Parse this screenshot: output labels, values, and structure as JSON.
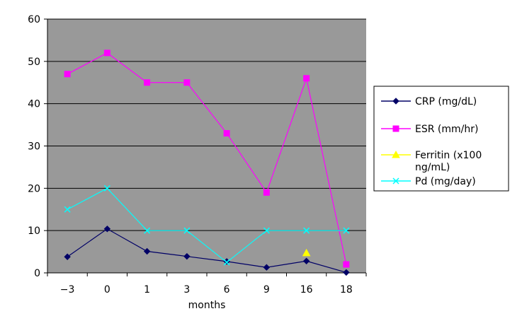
{
  "chart_data": {
    "type": "line",
    "title": "",
    "xlabel": "months",
    "ylabel": "",
    "categories": [
      "−3",
      "0",
      "1",
      "3",
      "6",
      "9",
      "16",
      "18"
    ],
    "ylim": [
      0,
      60
    ],
    "yticks": [
      0,
      10,
      20,
      30,
      40,
      50,
      60
    ],
    "grid": "horizontal",
    "plot_background": "#999999",
    "legend_position": "right",
    "series": [
      {
        "name": "CRP (mg/dL)",
        "color": "#000066",
        "marker": "diamond",
        "values": [
          3.8,
          10.4,
          5.1,
          3.9,
          2.7,
          1.3,
          2.8,
          0.1
        ]
      },
      {
        "name": "ESR (mm/hr)",
        "color": "#ff00ff",
        "marker": "square",
        "values": [
          47,
          52,
          45,
          45,
          33,
          19,
          46,
          2
        ]
      },
      {
        "name": "Ferritin (x100 ng/mL)",
        "color": "#ffff00",
        "marker": "triangle",
        "values": [
          null,
          null,
          null,
          null,
          null,
          null,
          4.7,
          null
        ]
      },
      {
        "name": "Pd (mg/day)",
        "color": "#00ffff",
        "marker": "x",
        "values": [
          15,
          20,
          10,
          10,
          2.5,
          10,
          10,
          10
        ]
      }
    ]
  }
}
